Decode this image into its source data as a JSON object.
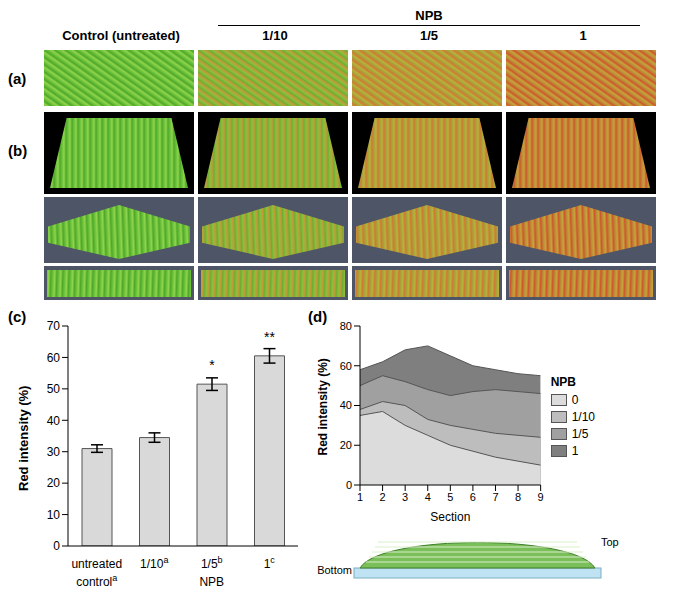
{
  "header": {
    "control": "Control (untreated)",
    "group": "NPB",
    "treatments": [
      "1/10",
      "1/5",
      "1"
    ]
  },
  "image_panels": [
    "(a)",
    "(b)"
  ],
  "chart_data": [
    {
      "panel": "(c)",
      "type": "bar",
      "y_label": "Red intensity (%)",
      "categories": [
        "untreated",
        "1/10",
        "1/5",
        "1"
      ],
      "values": [
        31,
        34.5,
        51.5,
        60.5
      ],
      "errors": [
        1.2,
        1.5,
        2.0,
        2.3
      ],
      "stars": [
        null,
        null,
        "*",
        "**"
      ],
      "letters": [
        "a",
        "a",
        "b",
        "c"
      ],
      "groups": [
        {
          "label": "control",
          "from": 0,
          "to": 0
        },
        {
          "label": "NPB",
          "from": 1,
          "to": 3
        }
      ],
      "color": "#d9d9d9",
      "ylim": [
        0,
        70
      ],
      "yticks": [
        0,
        10,
        20,
        30,
        40,
        50,
        60,
        70
      ],
      "grid": false
    },
    {
      "panel": "(d)",
      "type": "area",
      "x_label": "Section",
      "y_label": "Red intensity (%)",
      "legend_title": "NPB",
      "x": [
        1,
        2,
        3,
        4,
        5,
        6,
        7,
        8,
        9
      ],
      "xlim": [
        1,
        9
      ],
      "xticks": [
        1,
        2,
        3,
        4,
        5,
        6,
        7,
        8,
        9
      ],
      "ylim": [
        0,
        80
      ],
      "yticks": [
        0,
        20,
        40,
        60,
        80
      ],
      "grid": false,
      "legend": "right",
      "series": [
        {
          "name": "0",
          "color": "#dcdcdc",
          "values": [
            35,
            37,
            30,
            25,
            20,
            17,
            14,
            12,
            10
          ]
        },
        {
          "name": "1/10",
          "color": "#bdbdbd",
          "values": [
            38,
            42,
            40,
            33,
            30,
            28,
            26,
            25,
            24
          ]
        },
        {
          "name": "1/5",
          "color": "#a0a0a0",
          "values": [
            50,
            55,
            52,
            48,
            45,
            47,
            48,
            47,
            46
          ]
        },
        {
          "name": "1",
          "color": "#7f7f7f",
          "values": [
            58,
            62,
            68,
            70,
            65,
            60,
            58,
            56,
            55
          ]
        }
      ],
      "annotations": [
        {
          "x": 1,
          "text": "Bottom"
        },
        {
          "x": 9,
          "text": "Top"
        }
      ]
    }
  ]
}
